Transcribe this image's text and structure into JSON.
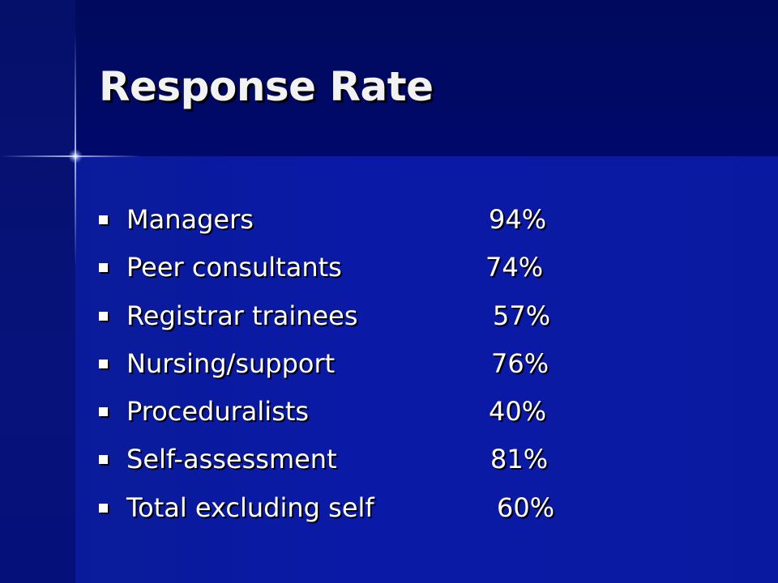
{
  "slide": {
    "title": "Response Rate",
    "rows": [
      {
        "label": "Managers",
        "value": "94%"
      },
      {
        "label": "Peer consultants",
        "value": "74%"
      },
      {
        "label": "Registrar trainees",
        "value": "57%"
      },
      {
        "label": "Nursing/support",
        "value": "76%"
      },
      {
        "label": "Proceduralists",
        "value": "40%"
      },
      {
        "label": "Self-assessment",
        "value": "81%"
      },
      {
        "label": "Total excluding self",
        "value": "60%"
      }
    ]
  },
  "colors": {
    "background_dark": "#000a5e",
    "background_main": "#0b1aa6",
    "text": "#ffffff"
  }
}
